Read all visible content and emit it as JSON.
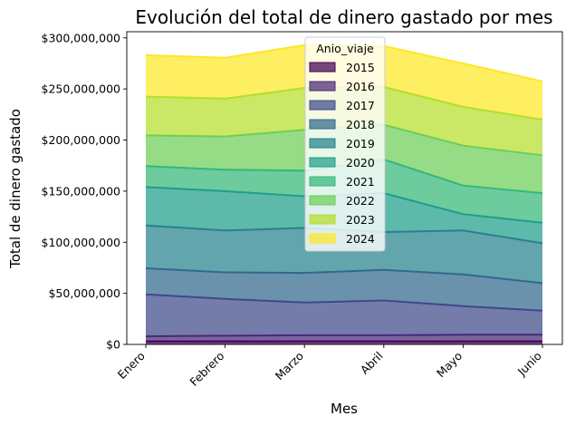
{
  "chart_data": {
    "type": "area",
    "stacked": true,
    "title": "Evolución del total de dinero gastado por mes",
    "xlabel": "Mes",
    "ylabel": "Total de dinero gastado",
    "categories": [
      "Enero",
      "Febrero",
      "Marzo",
      "Abril",
      "Mayo",
      "Junio"
    ],
    "ylim": [
      0,
      306000000
    ],
    "yticks": [
      0,
      50000000,
      100000000,
      150000000,
      200000000,
      250000000,
      300000000
    ],
    "ytick_labels": [
      "$0",
      "$50,000,000",
      "$100,000,000",
      "$150,000,000",
      "$200,000,000",
      "$250,000,000",
      "$300,000,000"
    ],
    "legend_title": "Anio_viaje",
    "legend_position": "upper center",
    "grid": false,
    "series": [
      {
        "name": "2015",
        "color": "#440154",
        "values": [
          3000000,
          3000000,
          3000000,
          3000000,
          3000000,
          3000000
        ]
      },
      {
        "name": "2016",
        "color": "#482878",
        "values": [
          5000000,
          5500000,
          6000000,
          6000000,
          6500000,
          6500000
        ]
      },
      {
        "name": "2017",
        "color": "#3e4989",
        "values": [
          41000000,
          36000000,
          32000000,
          34000000,
          28000000,
          23500000
        ]
      },
      {
        "name": "2018",
        "color": "#31688e",
        "values": [
          25500000,
          26000000,
          29000000,
          30000000,
          31000000,
          27000000
        ]
      },
      {
        "name": "2019",
        "color": "#26828e",
        "values": [
          42000000,
          41000000,
          44000000,
          37000000,
          43000000,
          39000000
        ]
      },
      {
        "name": "2020",
        "color": "#1f9e89",
        "values": [
          37500000,
          38500000,
          31000000,
          38000000,
          16000000,
          20000000
        ]
      },
      {
        "name": "2021",
        "color": "#35b779",
        "values": [
          20500000,
          21000000,
          25000000,
          33000000,
          28000000,
          29000000
        ]
      },
      {
        "name": "2022",
        "color": "#6ece58",
        "values": [
          30000000,
          32500000,
          40000000,
          34000000,
          39000000,
          37000000
        ]
      },
      {
        "name": "2023",
        "color": "#b5de2b",
        "values": [
          38000000,
          37000000,
          41000000,
          37000000,
          38000000,
          35000000
        ]
      },
      {
        "name": "2024",
        "color": "#fde725",
        "values": [
          40500000,
          40000000,
          42000000,
          40000000,
          42500000,
          37500000
        ]
      }
    ]
  }
}
